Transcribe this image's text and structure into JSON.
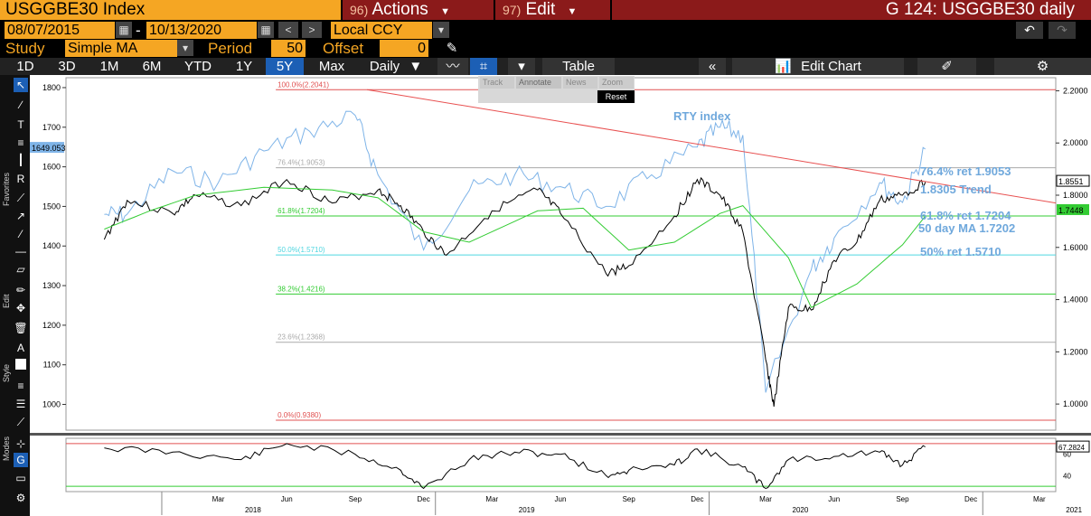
{
  "header": {
    "ticker": "USGGBE30 Index",
    "actions_num": "96)",
    "actions_label": "Actions",
    "edit_num": "97)",
    "edit_label": "Edit",
    "graph_title": "G 124: USGGBE30 daily"
  },
  "date_bar": {
    "start_date": "08/07/2015",
    "end_date": "10/13/2020",
    "separator": "-",
    "currency": "Local CCY"
  },
  "study_bar": {
    "study_label": "Study",
    "study_value": "Simple MA",
    "period_label": "Period",
    "period_value": "50",
    "offset_label": "Offset",
    "offset_value": "0"
  },
  "range_bar": {
    "ranges": [
      "1D",
      "3D",
      "1M",
      "6M",
      "YTD",
      "1Y",
      "5Y",
      "Max"
    ],
    "selected": "5Y",
    "frequency": "Daily",
    "table_label": "Table",
    "edit_chart_label": "Edit Chart"
  },
  "mini_toolbar": {
    "track": "Track",
    "annotate": "Annotate",
    "news": "News",
    "zoom": "Zoom",
    "reset": "Reset"
  },
  "side_labels": {
    "favorites": "Favorites",
    "edit": "Edit",
    "style": "Style",
    "modes": "Modes"
  },
  "colors": {
    "main_series": "#000000",
    "rty_series": "#7fb4e8",
    "ma_line": "#33cc33",
    "trend_line": "#e85050",
    "ret_100": "#e05050",
    "ret_764": "#aaaaaa",
    "ret_618": "#33cc33",
    "ret_50": "#4fd6e0",
    "ret_382": "#33cc33",
    "ret_236": "#aaaaaa",
    "ret_0": "#e05050",
    "annotation_blue": "#6fa8dc",
    "header_red": "#8b1a1a",
    "field_orange": "#f5a623"
  },
  "chart_data": {
    "type": "line",
    "left_axis": {
      "ticks": [
        "1800",
        "1700",
        "1600",
        "1500",
        "1400",
        "1300",
        "1200",
        "1100",
        "1000"
      ],
      "ylim": [
        935,
        1825
      ]
    },
    "right_axis": {
      "ticks": [
        "2.2000",
        "2.0000",
        "1.8000",
        "1.6000",
        "1.4000",
        "1.2000",
        "1.0000"
      ],
      "ylim": [
        0.9,
        2.25
      ]
    },
    "left_last_value": "1649.053",
    "right_last_values": [
      "1.8551",
      "1.7448"
    ],
    "x_ticks": [
      "Mar",
      "Jun",
      "Sep",
      "Dec",
      "Mar",
      "Jun",
      "Sep",
      "Dec",
      "Mar",
      "Jun",
      "Sep",
      "Dec",
      "Mar"
    ],
    "x_years": [
      "2018",
      "2019",
      "2020",
      "2021"
    ],
    "retracements": [
      {
        "label": "100.0%(2.2041)",
        "value": 2.2041
      },
      {
        "label": "76.4%(1.9053)",
        "value": 1.9053
      },
      {
        "label": "61.8%(1.7204)",
        "value": 1.7204
      },
      {
        "label": "50.0%(1.5710)",
        "value": 1.571
      },
      {
        "label": "38.2%(1.4216)",
        "value": 1.4216
      },
      {
        "label": "23.6%(1.2368)",
        "value": 1.2368
      },
      {
        "label": "0.0%(0.9380)",
        "value": 0.938
      }
    ],
    "annotations": [
      "RTY index",
      "76.4% ret 1.9053",
      "1.8305 Trend",
      "61.8% ret 1.7204",
      "50 day MA 1.7202",
      "50% ret 1.5710"
    ],
    "series": [
      {
        "name": "USGGBE30",
        "x": [
          "2017-10",
          "2017-11",
          "2018-01",
          "2018-02",
          "2018-04",
          "2018-06",
          "2018-08",
          "2018-10",
          "2018-11",
          "2018-12",
          "2019-01",
          "2019-03",
          "2019-05",
          "2019-06",
          "2019-08",
          "2019-09",
          "2019-11",
          "2019-12",
          "2020-01",
          "2020-02",
          "2020-03",
          "2020-03",
          "2020-04",
          "2020-05",
          "2020-06",
          "2020-07",
          "2020-08",
          "2020-09",
          "2020-10"
        ],
        "values": [
          1.63,
          1.78,
          1.73,
          1.8,
          1.76,
          1.86,
          1.77,
          1.82,
          1.76,
          1.66,
          1.57,
          1.74,
          1.82,
          1.73,
          1.5,
          1.53,
          1.72,
          1.86,
          1.8,
          1.66,
          1.17,
          0.99,
          1.37,
          1.36,
          1.55,
          1.62,
          1.78,
          1.8,
          1.85
        ]
      },
      {
        "name": "RTY index",
        "x": [
          "2017-10",
          "2017-11",
          "2018-01",
          "2018-03",
          "2018-05",
          "2018-07",
          "2018-09",
          "2018-10",
          "2018-12",
          "2019-02",
          "2019-04",
          "2019-06",
          "2019-08",
          "2019-10",
          "2019-12",
          "2020-01",
          "2020-02",
          "2020-03",
          "2020-05",
          "2020-06",
          "2020-08",
          "2020-09",
          "2020-10"
        ],
        "values": [
          1480,
          1480,
          1590,
          1560,
          1640,
          1690,
          1730,
          1580,
          1390,
          1540,
          1580,
          1550,
          1500,
          1580,
          1650,
          1700,
          1680,
          1030,
          1340,
          1420,
          1560,
          1510,
          1645
        ]
      },
      {
        "name": "50 day MA",
        "x": [
          "2017-10",
          "2017-12",
          "2018-02",
          "2018-05",
          "2018-08",
          "2018-10",
          "2018-12",
          "2019-02",
          "2019-05",
          "2019-07",
          "2019-09",
          "2019-11",
          "2020-01",
          "2020-02",
          "2020-04",
          "2020-05",
          "2020-07",
          "2020-09",
          "2020-10"
        ],
        "values": [
          1.67,
          1.74,
          1.8,
          1.83,
          1.82,
          1.79,
          1.66,
          1.62,
          1.74,
          1.75,
          1.59,
          1.62,
          1.73,
          1.76,
          1.56,
          1.37,
          1.46,
          1.61,
          1.72
        ]
      },
      {
        "name": "1.8305 Trend",
        "x": [
          "2018-10",
          "2020-11"
        ],
        "values": [
          2.2041,
          1.77
        ]
      }
    ],
    "lower_panel": {
      "type": "line",
      "last_value": "67.2824",
      "ticks": [
        "60",
        "40"
      ],
      "upper_band": 70,
      "lower_band": 30
    }
  }
}
